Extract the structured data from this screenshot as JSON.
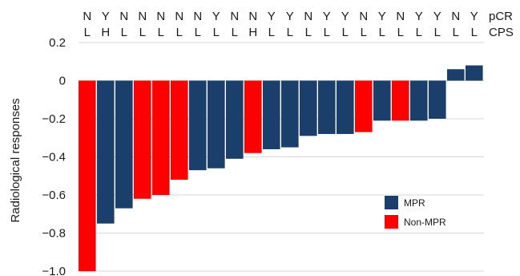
{
  "chart_data": {
    "type": "bar",
    "ylabel": "Radiological responses",
    "ylim": [
      -1.0,
      0.2
    ],
    "yticks": [
      "0.2",
      "0",
      "−0.2",
      "−0.4",
      "−0.6",
      "−0.8",
      "−1.0"
    ],
    "grid": true,
    "legend_position": "lower-right",
    "row_labels": {
      "pcr": "pCR",
      "cps": "CPS"
    },
    "pcr": [
      "N",
      "Y",
      "N",
      "N",
      "N",
      "N",
      "N",
      "Y",
      "N",
      "N",
      "Y",
      "Y",
      "N",
      "Y",
      "Y",
      "N",
      "Y",
      "N",
      "Y",
      "Y",
      "N",
      "Y"
    ],
    "cps": [
      "L",
      "H",
      "L",
      "L",
      "L",
      "L",
      "L",
      "L",
      "L",
      "H",
      "L",
      "L",
      "L",
      "L",
      "L",
      "L",
      "L",
      "L",
      "L",
      "L",
      "L",
      "L"
    ],
    "values": [
      -1.0,
      -0.75,
      -0.67,
      -0.62,
      -0.6,
      -0.52,
      -0.47,
      -0.46,
      -0.41,
      -0.38,
      -0.36,
      -0.35,
      -0.29,
      -0.28,
      -0.28,
      -0.27,
      -0.21,
      -0.21,
      -0.21,
      -0.2,
      0.06,
      0.08
    ],
    "groups": [
      "Non-MPR",
      "MPR",
      "MPR",
      "Non-MPR",
      "Non-MPR",
      "Non-MPR",
      "MPR",
      "MPR",
      "MPR",
      "Non-MPR",
      "MPR",
      "MPR",
      "MPR",
      "MPR",
      "MPR",
      "Non-MPR",
      "MPR",
      "Non-MPR",
      "MPR",
      "MPR",
      "MPR",
      "MPR"
    ],
    "series": [
      {
        "name": "MPR",
        "color": "#1b3f6b"
      },
      {
        "name": "Non-MPR",
        "color": "#ff0000"
      }
    ]
  }
}
